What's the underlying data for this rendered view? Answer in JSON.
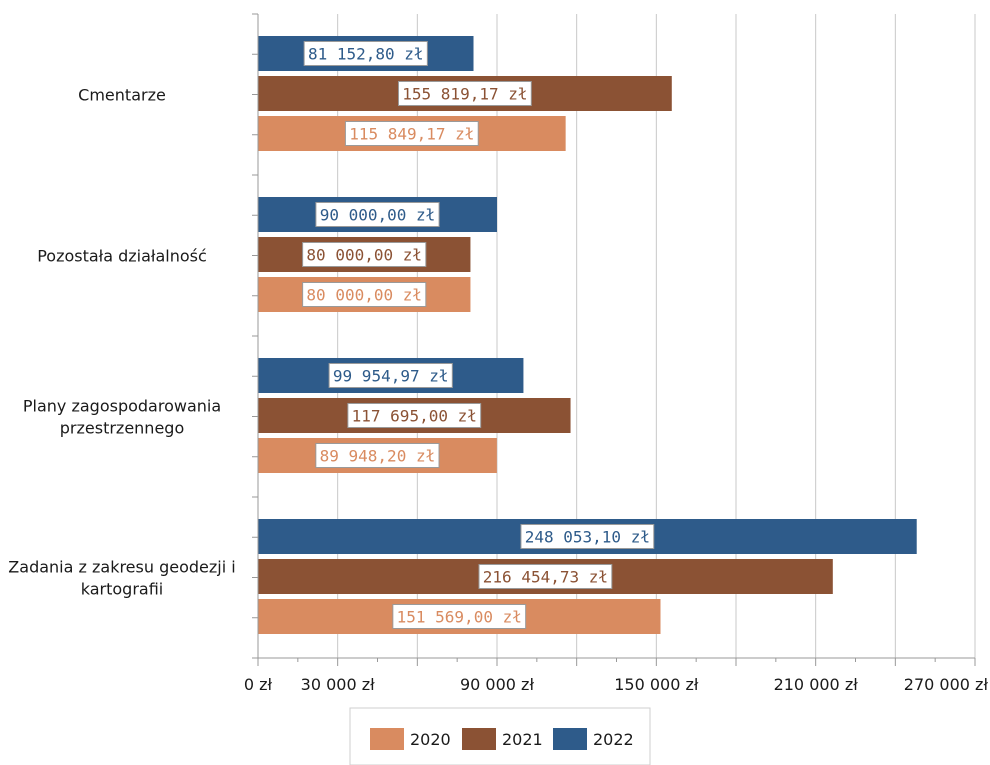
{
  "chart_data": {
    "type": "bar",
    "orientation": "horizontal",
    "categories": [
      "Cmentarze",
      "Pozostała działalność",
      "Plany zagospodarowania przestrzennego",
      "Zadania z zakresu geodezji i kartografii"
    ],
    "category_lines": [
      [
        "Cmentarze"
      ],
      [
        "Pozostała działalność"
      ],
      [
        "Plany zagospodarowania",
        "przestrzennego"
      ],
      [
        "Zadania z zakresu geodezji i",
        "kartografii"
      ]
    ],
    "series": [
      {
        "name": "2022",
        "color": "#2e5b8a",
        "values": [
          81152.8,
          90000.0,
          99954.97,
          248053.1
        ],
        "labels": [
          "81 152,80 zł",
          "90 000,00 zł",
          "99 954,97 zł",
          "248 053,10 zł"
        ]
      },
      {
        "name": "2021",
        "color": "#8b5234",
        "values": [
          155819.17,
          80000.0,
          117695.0,
          216454.73
        ],
        "labels": [
          "155 819,17 zł",
          "80 000,00 zł",
          "117 695,00 zł",
          "216 454,73 zł"
        ]
      },
      {
        "name": "2020",
        "color": "#d98b60",
        "values": [
          115849.17,
          80000.0,
          89948.2,
          151569.0
        ],
        "labels": [
          "115 849,17 zł",
          "80 000,00 zł",
          "89 948,20 zł",
          "151 569,00 zł"
        ]
      }
    ],
    "x_ticks": [
      {
        "value": 0,
        "label": "0 zł"
      },
      {
        "value": 30000,
        "label": "30 000 zł"
      },
      {
        "value": 90000,
        "label": "90 000 zł"
      },
      {
        "value": 150000,
        "label": "150 000 zł"
      },
      {
        "value": 210000,
        "label": "210 000 zł"
      },
      {
        "value": 270000,
        "label": "270 000 zł"
      }
    ],
    "gridlines": [
      0,
      30000,
      60000,
      90000,
      120000,
      150000,
      180000,
      210000,
      240000,
      270000
    ],
    "xlim": [
      0,
      270000
    ],
    "grid": true,
    "legend": {
      "position": "bottom",
      "entries": [
        {
          "name": "2020",
          "color": "#d98b60"
        },
        {
          "name": "2021",
          "color": "#8b5234"
        },
        {
          "name": "2022",
          "color": "#2e5b8a"
        }
      ]
    }
  }
}
